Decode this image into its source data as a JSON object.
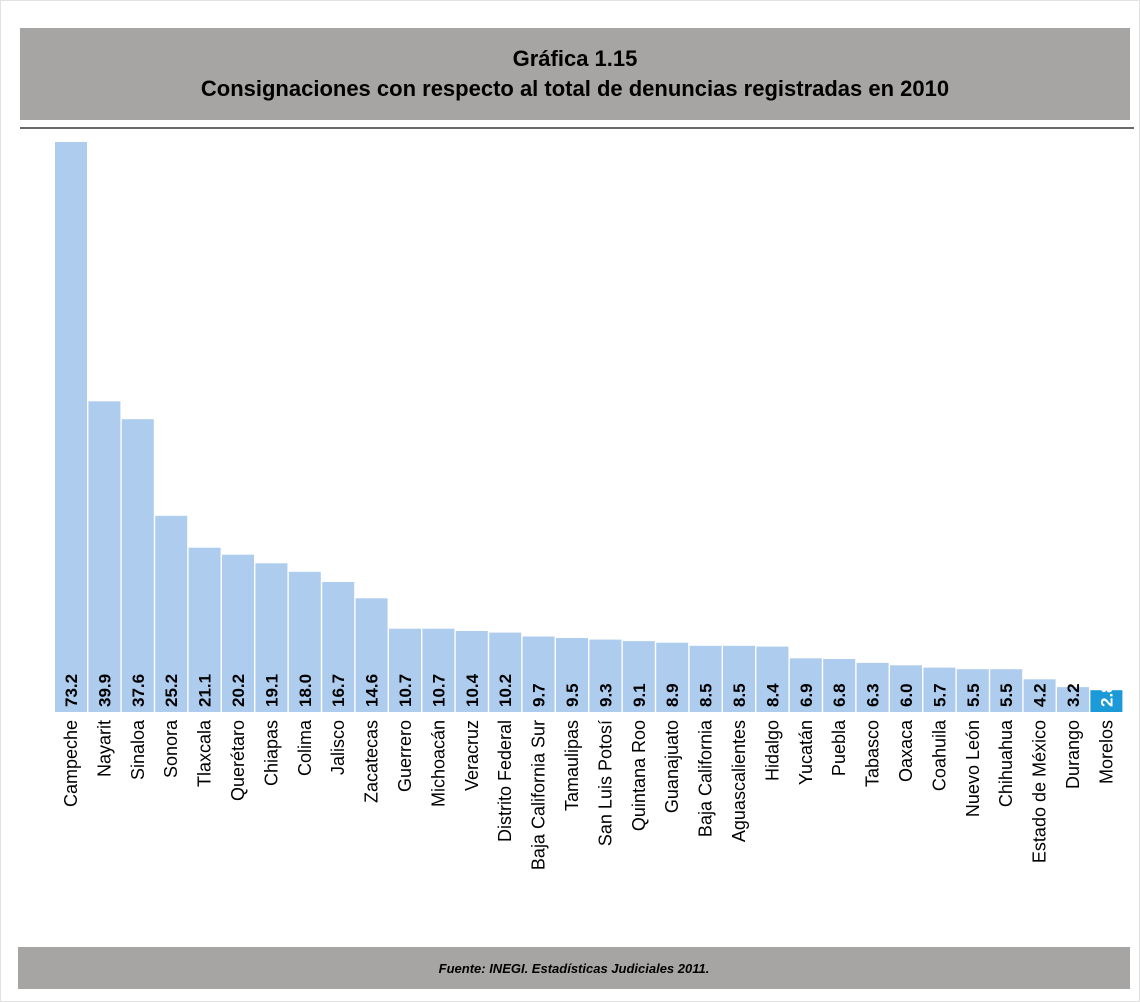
{
  "title": {
    "line1": "Gráfica 1.15",
    "line2": "Consignaciones con respecto al total de denuncias registradas en 2010"
  },
  "source": "Fuente: INEGI. Estadísticas Judiciales 2011.",
  "colors": {
    "bar": "#aecdee",
    "highlight": "#1c9ad8",
    "label_box": "#a7a5a3"
  },
  "chart_data": {
    "type": "bar",
    "title": "Consignaciones con respecto al total de denuncias registradas en 2010",
    "xlabel": "",
    "ylabel": "",
    "grid": false,
    "highlight_category": "Morelos",
    "categories": [
      "Campeche",
      "Nayarit",
      "Sinaloa",
      "Sonora",
      "Tlaxcala",
      "Querétaro",
      "Chiapas",
      "Colima",
      "Jalisco",
      "Zacatecas",
      "Guerrero",
      "Michoacán",
      "Veracruz",
      "Distrito Federal",
      "Baja California Sur",
      "Tamaulipas",
      "San Luis Potosí",
      "Quintana Roo",
      "Guanajuato",
      "Baja California",
      "Aguascalientes",
      "Hidalgo",
      "Yucatán",
      "Puebla",
      "Tabasco",
      "Oaxaca",
      "Coahuila",
      "Nuevo León",
      "Chihuahua",
      "Estado de México",
      "Durango",
      "Morelos"
    ],
    "values": [
      73.2,
      39.9,
      37.6,
      25.2,
      21.1,
      20.2,
      19.1,
      18.0,
      16.7,
      14.6,
      10.7,
      10.7,
      10.4,
      10.2,
      9.7,
      9.5,
      9.3,
      9.1,
      8.9,
      8.5,
      8.5,
      8.4,
      6.9,
      6.8,
      6.3,
      6.0,
      5.7,
      5.5,
      5.5,
      4.2,
      3.2,
      2.8
    ],
    "labels": [
      "73.2",
      "39.9",
      "37.6",
      "25.2",
      "21.1",
      "20.2",
      "19.1",
      "18.0",
      "16.7",
      "14.6",
      "10.7",
      "10.7",
      "10.4",
      "10.2",
      "9.7",
      "9.5",
      "9.3",
      "9.1",
      "8.9",
      "8.5",
      "8.5",
      "8.4",
      "6.9",
      "6.8",
      "6.3",
      "6.0",
      "5.7",
      "5.5",
      "5.5",
      "4.2",
      "3.2",
      "2.8"
    ]
  }
}
